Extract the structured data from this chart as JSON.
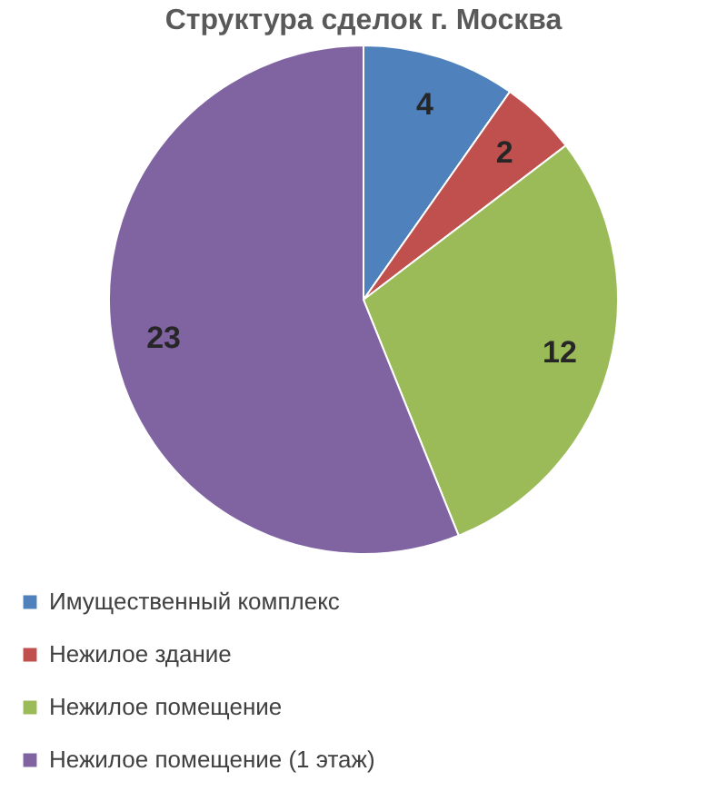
{
  "chart_data": {
    "type": "pie",
    "title": "Структура сделок г. Москва",
    "categories": [
      "Имущественный комплекс",
      "Нежилое здание",
      "Нежилое помещение",
      "Нежилое помещение (1 этаж)"
    ],
    "values": [
      4,
      2,
      12,
      23
    ],
    "colors": [
      "#4f81bd",
      "#c0504d",
      "#9bbb59",
      "#8064a2"
    ],
    "data_labels": true,
    "legend": "bottom"
  }
}
